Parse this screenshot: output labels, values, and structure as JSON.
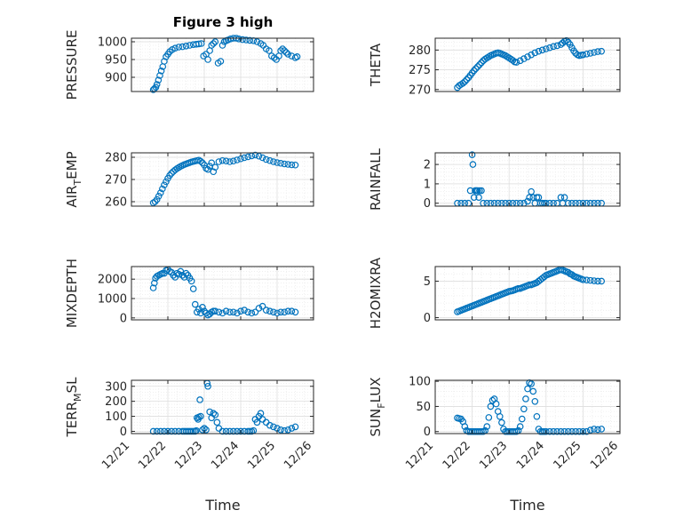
{
  "figure": {
    "title": "Figure 3 high"
  },
  "colors": {
    "marker": "#0072BD",
    "axis": "#262626",
    "grid": "#dedede",
    "minorgrid": "#ececec"
  },
  "chart_data": [
    {
      "id": "pressure",
      "type": "scatter",
      "ylabel": "PRESSURE",
      "ylabel_sub": null,
      "ylim": [
        860,
        1010
      ],
      "yticks": [
        900,
        950,
        1000
      ],
      "ytick_labels": [
        "900",
        "950",
        "1000"
      ],
      "xticks": [
        "12/21",
        "12/22",
        "12/23",
        "12/24",
        "12/25",
        "12/26"
      ],
      "grid": true,
      "x": [
        21.6,
        21.63,
        21.67,
        21.7,
        21.74,
        21.78,
        21.82,
        21.86,
        21.9,
        21.95,
        22.0,
        22.05,
        22.12,
        22.2,
        22.3,
        22.4,
        22.5,
        22.6,
        22.7,
        22.78,
        22.85,
        22.92,
        22.98,
        23.05,
        23.1,
        23.15,
        23.2,
        23.25,
        23.3,
        23.38,
        23.45,
        23.5,
        23.55,
        23.6,
        23.65,
        23.72,
        23.8,
        23.88,
        23.95,
        24.05,
        24.15,
        24.25,
        24.35,
        24.45,
        24.55,
        24.62,
        24.7,
        24.78,
        24.85,
        24.92,
        24.98,
        25.05,
        25.1,
        25.15,
        25.2,
        25.25,
        25.3,
        25.4,
        25.5,
        25.55
      ],
      "y": [
        865,
        868,
        872,
        880,
        892,
        905,
        918,
        930,
        945,
        958,
        965,
        972,
        978,
        982,
        985,
        986,
        988,
        990,
        992,
        993,
        994,
        995,
        960,
        965,
        950,
        975,
        990,
        995,
        1000,
        940,
        945,
        990,
        1000,
        1003,
        1005,
        1008,
        1010,
        1010,
        1008,
        1006,
        1005,
        1004,
        1003,
        1000,
        995,
        990,
        980,
        975,
        960,
        955,
        950,
        960,
        975,
        980,
        975,
        970,
        965,
        960,
        955,
        958
      ]
    },
    {
      "id": "theta",
      "type": "scatter",
      "ylabel": "THETA",
      "ylabel_sub": null,
      "ylim": [
        269.5,
        283
      ],
      "yticks": [
        270,
        275,
        280
      ],
      "ytick_labels": [
        "270",
        "275",
        "280"
      ],
      "xticks": [
        "12/21",
        "12/22",
        "12/23",
        "12/24",
        "12/25",
        "12/26"
      ],
      "grid": true,
      "x": [
        21.6,
        21.65,
        21.7,
        21.75,
        21.8,
        21.85,
        21.9,
        21.95,
        22.0,
        22.05,
        22.1,
        22.15,
        22.2,
        22.25,
        22.3,
        22.35,
        22.4,
        22.45,
        22.5,
        22.55,
        22.6,
        22.65,
        22.7,
        22.75,
        22.8,
        22.85,
        22.9,
        22.95,
        23.0,
        23.05,
        23.1,
        23.15,
        23.2,
        23.3,
        23.4,
        23.5,
        23.6,
        23.7,
        23.8,
        23.9,
        24.0,
        24.1,
        24.2,
        24.3,
        24.4,
        24.45,
        24.5,
        24.55,
        24.6,
        24.65,
        24.7,
        24.75,
        24.8,
        24.85,
        24.9,
        24.95,
        25.0,
        25.1,
        25.2,
        25.3,
        25.4,
        25.5
      ],
      "y": [
        270.5,
        271.0,
        271.3,
        271.6,
        272.0,
        272.5,
        273.0,
        273.6,
        274.2,
        274.8,
        275.3,
        275.8,
        276.3,
        276.8,
        277.3,
        277.7,
        278.0,
        278.3,
        278.6,
        278.8,
        279.0,
        279.2,
        279.3,
        279.2,
        279.0,
        278.8,
        278.6,
        278.3,
        278.0,
        277.7,
        277.4,
        277.0,
        276.9,
        277.3,
        277.8,
        278.3,
        278.8,
        279.3,
        279.7,
        280.0,
        280.3,
        280.6,
        280.9,
        281.1,
        281.4,
        281.8,
        282.2,
        282.4,
        282.0,
        281.4,
        280.6,
        279.8,
        279.2,
        278.8,
        278.6,
        278.7,
        278.8,
        279.0,
        279.2,
        279.4,
        279.6,
        279.7
      ]
    },
    {
      "id": "air_temp",
      "type": "scatter",
      "ylabel": "AIR",
      "ylabel_sub": "T",
      "ylabel_suffix": "EMP",
      "ylim": [
        258,
        282
      ],
      "yticks": [
        260,
        270,
        280
      ],
      "ytick_labels": [
        "260",
        "270",
        "280"
      ],
      "xticks": [
        "12/21",
        "12/22",
        "12/23",
        "12/24",
        "12/25",
        "12/26"
      ],
      "grid": true,
      "x": [
        21.6,
        21.65,
        21.7,
        21.75,
        21.8,
        21.85,
        21.9,
        21.95,
        22.0,
        22.05,
        22.1,
        22.15,
        22.2,
        22.25,
        22.3,
        22.35,
        22.4,
        22.45,
        22.5,
        22.55,
        22.6,
        22.65,
        22.7,
        22.75,
        22.8,
        22.85,
        22.9,
        22.95,
        23.0,
        23.05,
        23.1,
        23.15,
        23.2,
        23.25,
        23.3,
        23.4,
        23.5,
        23.6,
        23.7,
        23.8,
        23.9,
        24.0,
        24.1,
        24.2,
        24.3,
        24.4,
        24.5,
        24.6,
        24.7,
        24.8,
        24.9,
        25.0,
        25.1,
        25.2,
        25.3,
        25.4,
        25.5
      ],
      "y": [
        259.5,
        260.0,
        261.0,
        262.5,
        264.0,
        265.8,
        267.5,
        269.0,
        270.5,
        271.8,
        272.8,
        273.6,
        274.3,
        274.9,
        275.4,
        275.9,
        276.3,
        276.7,
        277.0,
        277.3,
        277.6,
        277.9,
        278.1,
        278.3,
        278.5,
        278.7,
        278.2,
        277.5,
        276.5,
        275.0,
        274.5,
        276.0,
        277.5,
        273.5,
        275.5,
        278.0,
        278.5,
        278.3,
        278.0,
        278.3,
        278.8,
        279.3,
        279.8,
        280.2,
        280.6,
        281.0,
        280.5,
        279.8,
        279.0,
        278.5,
        278.0,
        277.6,
        277.3,
        277.0,
        276.8,
        276.6,
        276.5
      ]
    },
    {
      "id": "rainfall",
      "type": "scatter",
      "ylabel": "RAINFALL",
      "ylabel_sub": null,
      "ylim": [
        -0.15,
        2.6
      ],
      "yticks": [
        0,
        1,
        2
      ],
      "ytick_labels": [
        "0",
        "1",
        "2"
      ],
      "xticks": [
        "12/21",
        "12/22",
        "12/23",
        "12/24",
        "12/25",
        "12/26"
      ],
      "grid": true,
      "x": [
        21.6,
        21.7,
        21.8,
        21.9,
        21.95,
        22.0,
        22.02,
        22.05,
        22.08,
        22.1,
        22.12,
        22.15,
        22.18,
        22.2,
        22.25,
        22.3,
        22.4,
        22.5,
        22.6,
        22.7,
        22.8,
        22.9,
        23.0,
        23.1,
        23.2,
        23.3,
        23.4,
        23.5,
        23.55,
        23.6,
        23.65,
        23.7,
        23.75,
        23.8,
        23.85,
        23.9,
        23.95,
        24.0,
        24.1,
        24.2,
        24.3,
        24.4,
        24.45,
        24.5,
        24.6,
        24.7,
        24.8,
        24.9,
        25.0,
        25.1,
        25.2,
        25.3,
        25.4,
        25.5
      ],
      "y": [
        0,
        0,
        0,
        0,
        0.65,
        2.5,
        2.0,
        0.3,
        0.65,
        0.65,
        0.65,
        0.65,
        0.3,
        0.65,
        0.65,
        0,
        0,
        0,
        0,
        0,
        0,
        0,
        0,
        0,
        0,
        0,
        0,
        0.1,
        0.3,
        0.6,
        0.3,
        0,
        0.3,
        0.3,
        0,
        0,
        0,
        0,
        0,
        0,
        0,
        0.3,
        0,
        0.3,
        0,
        0,
        0,
        0,
        0,
        0,
        0,
        0,
        0,
        0
      ]
    },
    {
      "id": "mixdepth",
      "type": "scatter",
      "ylabel": "MIXDEPTH",
      "ylabel_sub": null,
      "ylim": [
        -100,
        2650
      ],
      "yticks": [
        0,
        1000,
        2000
      ],
      "ytick_labels": [
        "0",
        "1000",
        "2000"
      ],
      "xticks": [
        "12/21",
        "12/22",
        "12/23",
        "12/24",
        "12/25",
        "12/26"
      ],
      "grid": true,
      "x": [
        21.6,
        21.63,
        21.66,
        21.7,
        21.75,
        21.8,
        21.85,
        21.9,
        21.95,
        22.0,
        22.05,
        22.1,
        22.15,
        22.2,
        22.25,
        22.3,
        22.35,
        22.4,
        22.45,
        22.5,
        22.55,
        22.6,
        22.65,
        22.7,
        22.75,
        22.8,
        22.85,
        22.9,
        22.95,
        23.0,
        23.05,
        23.1,
        23.15,
        23.2,
        23.25,
        23.3,
        23.4,
        23.5,
        23.6,
        23.7,
        23.8,
        23.9,
        24.0,
        24.1,
        24.2,
        24.3,
        24.4,
        24.5,
        24.6,
        24.7,
        24.8,
        24.9,
        25.0,
        25.1,
        25.2,
        25.3,
        25.4,
        25.5
      ],
      "y": [
        1550,
        1800,
        2050,
        2150,
        2200,
        2250,
        2300,
        2300,
        2450,
        2500,
        2400,
        2350,
        2200,
        2100,
        2300,
        2250,
        2400,
        2200,
        2100,
        2300,
        2200,
        2050,
        1900,
        1500,
        700,
        300,
        450,
        250,
        550,
        350,
        250,
        150,
        200,
        300,
        350,
        350,
        300,
        250,
        350,
        300,
        300,
        250,
        350,
        400,
        300,
        250,
        300,
        500,
        600,
        400,
        350,
        300,
        250,
        300,
        300,
        350,
        350,
        300
      ]
    },
    {
      "id": "h2omixra",
      "type": "scatter",
      "ylabel": "H2OMIXRA",
      "ylabel_sub": null,
      "ylim": [
        -0.3,
        7.0
      ],
      "yticks": [
        0,
        5
      ],
      "ytick_labels": [
        "0",
        "5"
      ],
      "xticks": [
        "12/21",
        "12/22",
        "12/23",
        "12/24",
        "12/25",
        "12/26"
      ],
      "grid": true,
      "x": [
        21.6,
        21.65,
        21.7,
        21.75,
        21.8,
        21.85,
        21.9,
        21.95,
        22.0,
        22.05,
        22.1,
        22.15,
        22.2,
        22.25,
        22.3,
        22.35,
        22.4,
        22.45,
        22.5,
        22.55,
        22.6,
        22.65,
        22.7,
        22.75,
        22.8,
        22.85,
        22.9,
        22.95,
        23.0,
        23.05,
        23.1,
        23.15,
        23.2,
        23.25,
        23.3,
        23.35,
        23.4,
        23.45,
        23.5,
        23.55,
        23.6,
        23.65,
        23.7,
        23.75,
        23.8,
        23.85,
        23.9,
        23.95,
        24.0,
        24.05,
        24.1,
        24.15,
        24.2,
        24.25,
        24.3,
        24.35,
        24.4,
        24.45,
        24.5,
        24.55,
        24.6,
        24.65,
        24.7,
        24.75,
        24.8,
        24.85,
        24.9,
        24.95,
        25.0,
        25.1,
        25.2,
        25.3,
        25.4,
        25.5
      ],
      "y": [
        0.8,
        0.9,
        1.0,
        1.1,
        1.2,
        1.3,
        1.4,
        1.5,
        1.6,
        1.7,
        1.8,
        1.9,
        2.0,
        2.1,
        2.2,
        2.3,
        2.4,
        2.5,
        2.6,
        2.7,
        2.8,
        2.9,
        3.0,
        3.1,
        3.2,
        3.3,
        3.4,
        3.5,
        3.6,
        3.65,
        3.7,
        3.8,
        3.9,
        4.0,
        4.0,
        4.1,
        4.2,
        4.3,
        4.4,
        4.5,
        4.5,
        4.6,
        4.7,
        4.8,
        5.0,
        5.2,
        5.4,
        5.6,
        5.8,
        5.9,
        6.0,
        6.1,
        6.2,
        6.3,
        6.4,
        6.5,
        6.6,
        6.5,
        6.4,
        6.3,
        6.2,
        6.0,
        5.9,
        5.7,
        5.6,
        5.5,
        5.4,
        5.3,
        5.2,
        5.15,
        5.1,
        5.05,
        5.0,
        5.0
      ]
    },
    {
      "id": "terr_msl",
      "type": "scatter",
      "ylabel": "TERR",
      "ylabel_sub": "M",
      "ylabel_suffix": "SL",
      "ylim": [
        -15,
        340
      ],
      "yticks": [
        0,
        100,
        200,
        300
      ],
      "ytick_labels": [
        "0",
        "100",
        "200",
        "300"
      ],
      "xticks": [
        "12/21",
        "12/22",
        "12/23",
        "12/24",
        "12/25",
        "12/26"
      ],
      "grid": true,
      "x": [
        21.6,
        21.7,
        21.8,
        21.9,
        22.0,
        22.1,
        22.2,
        22.3,
        22.4,
        22.45,
        22.5,
        22.55,
        22.6,
        22.65,
        22.7,
        22.75,
        22.78,
        22.8,
        22.83,
        22.85,
        22.88,
        22.9,
        22.95,
        23.0,
        23.05,
        23.08,
        23.1,
        23.15,
        23.2,
        23.25,
        23.3,
        23.35,
        23.4,
        23.5,
        23.6,
        23.7,
        23.8,
        23.9,
        24.0,
        24.1,
        24.2,
        24.25,
        24.3,
        24.35,
        24.4,
        24.45,
        24.5,
        24.55,
        24.6,
        24.7,
        24.8,
        24.9,
        25.0,
        25.1,
        25.2,
        25.3,
        25.4,
        25.5
      ],
      "y": [
        0,
        0,
        0,
        0,
        0,
        0,
        0,
        0,
        0,
        0,
        0,
        0,
        0,
        0,
        0,
        0,
        5,
        90,
        80,
        95,
        210,
        100,
        10,
        20,
        10,
        320,
        300,
        130,
        90,
        120,
        110,
        60,
        20,
        0,
        0,
        0,
        0,
        0,
        0,
        0,
        0,
        0,
        0,
        5,
        80,
        60,
        100,
        120,
        80,
        60,
        40,
        30,
        20,
        10,
        5,
        10,
        20,
        30
      ]
    },
    {
      "id": "sun_flux",
      "type": "scatter",
      "ylabel": "SUN",
      "ylabel_sub": "F",
      "ylabel_suffix": "LUX",
      "ylim": [
        -4,
        102
      ],
      "yticks": [
        0,
        50,
        100
      ],
      "ytick_labels": [
        "0",
        "50",
        "100"
      ],
      "xticks": [
        "12/21",
        "12/22",
        "12/23",
        "12/24",
        "12/25",
        "12/26"
      ],
      "grid": true,
      "x": [
        21.6,
        21.65,
        21.7,
        21.75,
        21.8,
        21.85,
        21.9,
        21.95,
        22.0,
        22.05,
        22.1,
        22.15,
        22.2,
        22.25,
        22.3,
        22.35,
        22.4,
        22.45,
        22.5,
        22.55,
        22.6,
        22.65,
        22.7,
        22.75,
        22.8,
        22.85,
        22.9,
        22.95,
        23.0,
        23.05,
        23.1,
        23.15,
        23.2,
        23.25,
        23.3,
        23.35,
        23.4,
        23.45,
        23.5,
        23.55,
        23.6,
        23.65,
        23.7,
        23.75,
        23.8,
        23.85,
        23.9,
        23.95,
        24.0,
        24.1,
        24.2,
        24.3,
        24.4,
        24.5,
        24.6,
        24.7,
        24.8,
        24.9,
        25.0,
        25.1,
        25.2,
        25.3,
        25.4,
        25.5
      ],
      "y": [
        27,
        26,
        25,
        20,
        10,
        2,
        0,
        0,
        0,
        0,
        0,
        0,
        0,
        0,
        0,
        2,
        10,
        28,
        50,
        62,
        65,
        55,
        40,
        30,
        18,
        5,
        0,
        0,
        0,
        0,
        0,
        0,
        0,
        2,
        10,
        25,
        45,
        65,
        85,
        97,
        95,
        80,
        60,
        30,
        5,
        0,
        0,
        0,
        0,
        0,
        0,
        0,
        0,
        0,
        0,
        0,
        0,
        0,
        0,
        0,
        3,
        5,
        4,
        5
      ]
    }
  ]
}
